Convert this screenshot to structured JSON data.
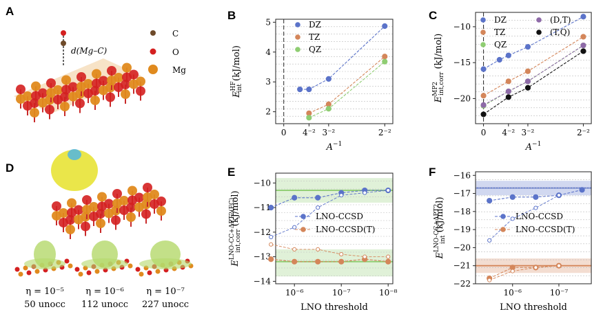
{
  "panels": {
    "A": {
      "letter": "A",
      "atoms": [
        {
          "label": "C",
          "color": "#6e4a2a"
        },
        {
          "label": "O",
          "color": "#d42020"
        },
        {
          "label": "Mg",
          "color": "#e08a1e"
        }
      ],
      "distance_label": "d(Mg–C)"
    },
    "D": {
      "letter": "D",
      "captions": [
        {
          "eta": "η = 10⁻⁵",
          "unocc": "50 unocc"
        },
        {
          "eta": "η = 10⁻⁶",
          "unocc": "112 unocc"
        },
        {
          "eta": "η = 10⁻⁷",
          "unocc": "227 unocc"
        }
      ]
    }
  },
  "chart_data": [
    {
      "id": "B",
      "letter": "B",
      "type": "line",
      "xlabel": "A⁻¹",
      "ylabel": "E_int^HF (kJ/mol)",
      "xlim": [
        -0.02,
        0.27
      ],
      "ylim": [
        1.6,
        5.1
      ],
      "xticks": [
        {
          "v": 0,
          "t": "0"
        },
        {
          "v": 0.0625,
          "t": "4⁻²"
        },
        {
          "v": 0.1111,
          "t": "3⁻²"
        },
        {
          "v": 0.25,
          "t": "2⁻²"
        }
      ],
      "yticks": [
        2,
        3,
        4,
        5
      ],
      "legend": "top-left",
      "series": [
        {
          "name": "DZ",
          "color": "#5b73c9",
          "x": [
            0.04,
            0.0625,
            0.1111,
            0.25
          ],
          "y": [
            2.75,
            2.75,
            3.1,
            4.87
          ]
        },
        {
          "name": "TZ",
          "color": "#d4865a",
          "x": [
            0.0625,
            0.1111,
            0.25
          ],
          "y": [
            1.95,
            2.25,
            3.85
          ]
        },
        {
          "name": "QZ",
          "color": "#8fcd72",
          "x": [
            0.0625,
            0.1111,
            0.25
          ],
          "y": [
            1.8,
            2.1,
            3.68
          ]
        }
      ]
    },
    {
      "id": "C",
      "letter": "C",
      "type": "line",
      "xlabel": "A⁻¹",
      "ylabel": "E_int,corr^MP2 (kJ/mol)",
      "xlim": [
        -0.02,
        0.27
      ],
      "ylim": [
        -23.5,
        -8.0
      ],
      "xticks": [
        {
          "v": 0,
          "t": "0"
        },
        {
          "v": 0.0625,
          "t": "4⁻²"
        },
        {
          "v": 0.1111,
          "t": "3⁻²"
        },
        {
          "v": 0.25,
          "t": "2⁻²"
        }
      ],
      "yticks": [
        -20,
        -15,
        -10
      ],
      "legend": "top",
      "series": [
        {
          "name": "DZ",
          "color": "#5b73c9",
          "x": [
            0,
            0.04,
            0.0625,
            0.1111,
            0.25
          ],
          "y": [
            -15.9,
            -14.6,
            -14.0,
            -12.8,
            -8.6
          ]
        },
        {
          "name": "TZ",
          "color": "#d4865a",
          "x": [
            0,
            0.0625,
            0.1111,
            0.25
          ],
          "y": [
            -19.6,
            -17.6,
            -16.2,
            -11.4
          ]
        },
        {
          "name": "QZ",
          "color": "#8fcd72",
          "x": [
            0,
            0.0625,
            0.1111,
            0.25
          ],
          "y": [
            -21.0,
            -19.0,
            -17.6,
            -12.6
          ]
        },
        {
          "name": "(D,T)",
          "color": "#8e6aa8",
          "x": [
            0,
            0.0625,
            0.1111,
            0.25
          ],
          "y": [
            -20.9,
            -19.0,
            -17.6,
            -12.6
          ]
        },
        {
          "name": "(T,Q)",
          "color": "#111111",
          "x": [
            0,
            0.0625,
            0.1111,
            0.25
          ],
          "y": [
            -22.2,
            -19.8,
            -18.5,
            -13.4
          ]
        }
      ]
    },
    {
      "id": "E",
      "letter": "E",
      "type": "line",
      "xlabel": "LNO threshold",
      "ylabel": "E_int,corr^LNO-CC+ΔPT2(FC) (kJ/mol)",
      "xlim": [
        -5.6,
        -8.1
      ],
      "ylim": [
        -14.1,
        -9.6
      ],
      "xticks": [
        {
          "v": -6,
          "t": "10⁻⁶"
        },
        {
          "v": -7,
          "t": "10⁻⁷"
        },
        {
          "v": -8,
          "t": "10⁻⁸"
        }
      ],
      "yticks": [
        -14,
        -13,
        -12,
        -11,
        -10
      ],
      "legend": "middle",
      "bands": [
        {
          "center": -10.3,
          "low": -10.8,
          "high": -9.8,
          "color": "#8fcd72"
        },
        {
          "center": -13.2,
          "low": -13.8,
          "high": -12.7,
          "color": "#8fcd72"
        }
      ],
      "series": [
        {
          "name": "LNO-CCSD",
          "color": "#5b73c9",
          "x": [
            -5.5,
            -6.0,
            -6.5,
            -7.0,
            -7.5,
            -8.0
          ],
          "y": [
            -11.0,
            -10.6,
            -10.6,
            -10.4,
            -10.3,
            -10.3
          ]
        },
        {
          "name": "",
          "color": "#5b73c9",
          "open": true,
          "dashed": true,
          "x": [
            -5.5,
            -6.0,
            -6.5,
            -7.0,
            -7.5,
            -8.0
          ],
          "y": [
            -12.2,
            -11.8,
            -11.0,
            -10.5,
            -10.4,
            -10.3
          ]
        },
        {
          "name": "LNO-CCSD(T)",
          "color": "#d4865a",
          "x": [
            -5.5,
            -6.0,
            -6.5,
            -7.0,
            -7.5,
            -8.0
          ],
          "y": [
            -13.1,
            -13.2,
            -13.2,
            -13.2,
            -13.1,
            -13.2
          ]
        },
        {
          "name": "",
          "color": "#d4865a",
          "open": true,
          "dashed": true,
          "x": [
            -5.5,
            -6.0,
            -6.5,
            -7.0,
            -7.5,
            -8.0
          ],
          "y": [
            -12.5,
            -12.7,
            -12.7,
            -12.9,
            -13.0,
            -13.0
          ]
        }
      ]
    },
    {
      "id": "F",
      "letter": "F",
      "type": "line",
      "xlabel": "LNO threshold",
      "ylabel": "E_int^LNO-CC+ΔPT2 (kJ/mol)",
      "xlim": [
        -5.2,
        -7.7
      ],
      "ylim": [
        -22.0,
        -15.8
      ],
      "xticks": [
        {
          "v": -6,
          "t": "10⁻⁶"
        },
        {
          "v": -7,
          "t": "10⁻⁷"
        }
      ],
      "yticks": [
        -22,
        -21,
        -20,
        -19,
        -18,
        -17,
        -16
      ],
      "legend": "middle",
      "bands": [
        {
          "center": -16.7,
          "low": -17.1,
          "high": -16.3,
          "color": "#5b73c9"
        },
        {
          "center": -21.0,
          "low": -21.4,
          "high": -20.6,
          "color": "#d4865a"
        }
      ],
      "series": [
        {
          "name": "LNO-CCSD",
          "color": "#5b73c9",
          "x": [
            -5.5,
            -6.0,
            -6.5,
            -7.0,
            -7.5
          ],
          "y": [
            -17.4,
            -17.2,
            -17.2,
            -17.1,
            -16.8
          ]
        },
        {
          "name": "",
          "color": "#5b73c9",
          "open": true,
          "dashed": true,
          "x": [
            -5.5,
            -6.0,
            -6.5,
            -7.0
          ],
          "y": [
            -19.6,
            -18.4,
            -17.8,
            -17.1
          ]
        },
        {
          "name": "LNO-CCSD(T)",
          "color": "#d4865a",
          "x": [
            -5.5,
            -6.0,
            -6.5,
            -7.0
          ],
          "y": [
            -21.7,
            -21.1,
            -21.1,
            -21.0
          ]
        },
        {
          "name": "",
          "color": "#d4865a",
          "open": true,
          "dashed": true,
          "x": [
            -5.5,
            -6.0,
            -6.5,
            -7.0
          ],
          "y": [
            -21.8,
            -21.3,
            -21.1,
            -21.0
          ]
        }
      ]
    }
  ]
}
